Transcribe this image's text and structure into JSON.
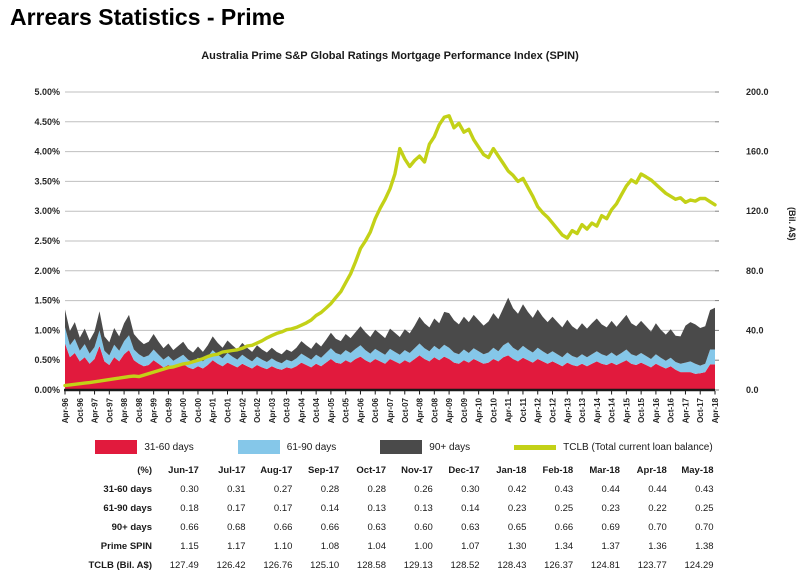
{
  "page_title": "Arrears Statistics - Prime",
  "chart": {
    "title": "Australia Prime S&P Global Ratings Mortgage Performance Index (SPIN)",
    "left_axis": {
      "ticks": [
        "0.00%",
        "0.50%",
        "1.00%",
        "1.50%",
        "2.00%",
        "2.50%",
        "3.00%",
        "3.50%",
        "4.00%",
        "4.50%",
        "5.00%"
      ],
      "min": 0,
      "max": 5
    },
    "right_axis": {
      "ticks": [
        "0.0",
        "40.0",
        "80.0",
        "120.0",
        "160.0",
        "200.0"
      ],
      "title": "(Bil. A$)",
      "min": 0,
      "max": 200
    }
  },
  "chart_data": {
    "type": "area",
    "stacked": true,
    "grid": true,
    "left_ylim": [
      0,
      5
    ],
    "right_ylim": [
      0,
      200
    ],
    "x_range": [
      "Apr-96",
      "Apr-18"
    ],
    "x_tick_labels": [
      "Apr-96",
      "Oct-96",
      "Apr-97",
      "Oct-97",
      "Apr-98",
      "Oct-98",
      "Apr-99",
      "Oct-99",
      "Apr-00",
      "Oct-00",
      "Apr-01",
      "Oct-01",
      "Apr-02",
      "Oct-02",
      "Apr-03",
      "Oct-03",
      "Apr-04",
      "Oct-04",
      "Apr-05",
      "Oct-05",
      "Apr-06",
      "Oct-06",
      "Apr-07",
      "Oct-07",
      "Apr-08",
      "Oct-08",
      "Apr-09",
      "Oct-09",
      "Apr-10",
      "Oct-10",
      "Apr-11",
      "Oct-11",
      "Apr-12",
      "Oct-12",
      "Apr-13",
      "Oct-13",
      "Apr-14",
      "Oct-14",
      "Apr-15",
      "Oct-15",
      "Apr-16",
      "Oct-16",
      "Apr-17",
      "Oct-17",
      "Apr-18"
    ],
    "series": [
      {
        "name": "31-60 days",
        "kind": "stacked-area",
        "axis": "left",
        "color": "#e11a3d",
        "values": [
          0.78,
          0.55,
          0.62,
          0.48,
          0.55,
          0.44,
          0.52,
          0.74,
          0.48,
          0.42,
          0.55,
          0.48,
          0.6,
          0.67,
          0.5,
          0.44,
          0.4,
          0.42,
          0.5,
          0.44,
          0.38,
          0.42,
          0.36,
          0.4,
          0.44,
          0.38,
          0.35,
          0.4,
          0.36,
          0.42,
          0.5,
          0.44,
          0.4,
          0.46,
          0.42,
          0.38,
          0.44,
          0.4,
          0.36,
          0.42,
          0.38,
          0.35,
          0.4,
          0.36,
          0.34,
          0.38,
          0.36,
          0.4,
          0.46,
          0.42,
          0.38,
          0.44,
          0.4,
          0.46,
          0.52,
          0.46,
          0.44,
          0.5,
          0.46,
          0.52,
          0.56,
          0.5,
          0.46,
          0.52,
          0.48,
          0.44,
          0.52,
          0.48,
          0.44,
          0.5,
          0.46,
          0.52,
          0.58,
          0.52,
          0.48,
          0.55,
          0.5,
          0.56,
          0.52,
          0.46,
          0.44,
          0.5,
          0.46,
          0.52,
          0.48,
          0.44,
          0.46,
          0.52,
          0.48,
          0.55,
          0.58,
          0.52,
          0.48,
          0.54,
          0.5,
          0.46,
          0.52,
          0.48,
          0.44,
          0.48,
          0.44,
          0.4,
          0.46,
          0.42,
          0.4,
          0.44,
          0.4,
          0.44,
          0.48,
          0.44,
          0.42,
          0.46,
          0.42,
          0.46,
          0.5,
          0.44,
          0.42,
          0.46,
          0.42,
          0.38,
          0.44,
          0.4,
          0.36,
          0.4,
          0.34,
          0.3,
          0.3,
          0.3,
          0.27,
          0.28,
          0.3,
          0.43,
          0.43
        ]
      },
      {
        "name": "61-90 days",
        "kind": "stacked-area",
        "axis": "left",
        "color": "#85c7e9",
        "values": [
          0.27,
          0.2,
          0.24,
          0.18,
          0.22,
          0.17,
          0.2,
          0.26,
          0.18,
          0.16,
          0.21,
          0.18,
          0.22,
          0.25,
          0.18,
          0.16,
          0.15,
          0.16,
          0.18,
          0.15,
          0.13,
          0.15,
          0.13,
          0.14,
          0.15,
          0.13,
          0.12,
          0.14,
          0.12,
          0.14,
          0.17,
          0.15,
          0.13,
          0.16,
          0.14,
          0.13,
          0.15,
          0.13,
          0.12,
          0.14,
          0.13,
          0.12,
          0.13,
          0.12,
          0.11,
          0.13,
          0.12,
          0.13,
          0.15,
          0.14,
          0.13,
          0.15,
          0.14,
          0.16,
          0.18,
          0.16,
          0.15,
          0.17,
          0.16,
          0.17,
          0.19,
          0.17,
          0.15,
          0.17,
          0.16,
          0.15,
          0.17,
          0.16,
          0.15,
          0.17,
          0.16,
          0.18,
          0.2,
          0.18,
          0.17,
          0.19,
          0.18,
          0.2,
          0.19,
          0.17,
          0.16,
          0.18,
          0.16,
          0.18,
          0.17,
          0.16,
          0.17,
          0.19,
          0.17,
          0.2,
          0.22,
          0.19,
          0.18,
          0.2,
          0.18,
          0.17,
          0.19,
          0.17,
          0.16,
          0.17,
          0.16,
          0.15,
          0.17,
          0.15,
          0.14,
          0.16,
          0.15,
          0.16,
          0.17,
          0.16,
          0.15,
          0.17,
          0.15,
          0.16,
          0.18,
          0.16,
          0.15,
          0.16,
          0.15,
          0.14,
          0.16,
          0.14,
          0.13,
          0.14,
          0.13,
          0.14,
          0.16,
          0.18,
          0.17,
          0.13,
          0.14,
          0.25,
          0.25
        ]
      },
      {
        "name": "90+ days",
        "kind": "stacked-area",
        "axis": "left",
        "color": "#4a4a4a",
        "values": [
          0.3,
          0.24,
          0.28,
          0.22,
          0.26,
          0.22,
          0.26,
          0.32,
          0.24,
          0.22,
          0.28,
          0.24,
          0.3,
          0.34,
          0.26,
          0.24,
          0.22,
          0.23,
          0.26,
          0.22,
          0.19,
          0.21,
          0.18,
          0.2,
          0.22,
          0.18,
          0.16,
          0.19,
          0.16,
          0.19,
          0.23,
          0.2,
          0.18,
          0.21,
          0.19,
          0.17,
          0.2,
          0.18,
          0.16,
          0.19,
          0.17,
          0.16,
          0.18,
          0.16,
          0.15,
          0.17,
          0.16,
          0.18,
          0.21,
          0.19,
          0.18,
          0.21,
          0.19,
          0.22,
          0.26,
          0.24,
          0.23,
          0.27,
          0.25,
          0.28,
          0.32,
          0.3,
          0.28,
          0.32,
          0.3,
          0.28,
          0.34,
          0.32,
          0.3,
          0.35,
          0.33,
          0.38,
          0.45,
          0.42,
          0.4,
          0.46,
          0.44,
          0.55,
          0.58,
          0.54,
          0.5,
          0.55,
          0.52,
          0.56,
          0.52,
          0.48,
          0.52,
          0.58,
          0.54,
          0.62,
          0.75,
          0.66,
          0.62,
          0.7,
          0.63,
          0.58,
          0.64,
          0.58,
          0.54,
          0.58,
          0.54,
          0.5,
          0.55,
          0.5,
          0.47,
          0.52,
          0.48,
          0.52,
          0.55,
          0.5,
          0.48,
          0.53,
          0.49,
          0.54,
          0.58,
          0.52,
          0.5,
          0.54,
          0.5,
          0.46,
          0.52,
          0.47,
          0.44,
          0.48,
          0.44,
          0.46,
          0.62,
          0.66,
          0.66,
          0.63,
          0.63,
          0.66,
          0.7
        ]
      },
      {
        "name": "TCLB (Total current loan balance)",
        "kind": "line",
        "axis": "right",
        "color": "#c3d117",
        "values": [
          3.0,
          3.4,
          3.8,
          4.2,
          4.6,
          5.0,
          5.5,
          6.0,
          6.5,
          7.0,
          7.5,
          8.0,
          8.5,
          9.0,
          9.3,
          9.0,
          10.0,
          11.0,
          12.0,
          13.0,
          14.0,
          15.0,
          15.5,
          16.5,
          17.5,
          18.0,
          19.0,
          20.0,
          21.0,
          22.5,
          23.5,
          24.0,
          25.5,
          26.0,
          26.5,
          27.0,
          28.0,
          29.5,
          30.0,
          31.5,
          33.0,
          35.0,
          36.5,
          38.0,
          39.0,
          40.5,
          41.0,
          42.0,
          43.5,
          45.0,
          47.0,
          50.0,
          52.0,
          55.0,
          58.0,
          62.0,
          66.0,
          72.0,
          78.0,
          86.0,
          95.0,
          100.0,
          106.0,
          115.0,
          122.0,
          128.0,
          135.0,
          145.0,
          162.0,
          155.0,
          150.0,
          154.0,
          157.0,
          153.0,
          165.0,
          170.0,
          178.0,
          183.0,
          184.0,
          176.0,
          179.0,
          173.0,
          175.0,
          168.0,
          163.0,
          158.0,
          156.0,
          162.0,
          157.0,
          152.0,
          147.0,
          144.0,
          140.0,
          142.0,
          136.0,
          130.0,
          123.0,
          119.0,
          116.0,
          112.0,
          108.0,
          104.0,
          102.0,
          107.0,
          105.0,
          111.0,
          108.0,
          112.0,
          110.0,
          117.0,
          115.0,
          121.0,
          125.0,
          131.0,
          137.0,
          141.0,
          139.0,
          145.0,
          143.0,
          141.0,
          138.0,
          135.0,
          132.0,
          130.0,
          128.0,
          129.0,
          126.0,
          127.5,
          126.8,
          128.6,
          128.5,
          126.4,
          124.3
        ]
      }
    ]
  },
  "legend": {
    "items": [
      {
        "label": "31-60 days",
        "color": "#e11a3d",
        "shape": "box"
      },
      {
        "label": "61-90 days",
        "color": "#85c7e9",
        "shape": "box"
      },
      {
        "label": "90+ days",
        "color": "#4a4a4a",
        "shape": "box"
      },
      {
        "label": "TCLB (Total current loan balance)",
        "color": "#c3d117",
        "shape": "line"
      }
    ]
  },
  "table": {
    "header": [
      "(%)",
      "Jun-17",
      "Jul-17",
      "Aug-17",
      "Sep-17",
      "Oct-17",
      "Nov-17",
      "Dec-17",
      "Jan-18",
      "Feb-18",
      "Mar-18",
      "Apr-18",
      "May-18"
    ],
    "rows": [
      {
        "label": "31-60 days",
        "values": [
          "0.30",
          "0.31",
          "0.27",
          "0.28",
          "0.28",
          "0.26",
          "0.30",
          "0.42",
          "0.43",
          "0.44",
          "0.44",
          "0.43"
        ]
      },
      {
        "label": "61-90 days",
        "values": [
          "0.18",
          "0.17",
          "0.17",
          "0.14",
          "0.13",
          "0.13",
          "0.14",
          "0.23",
          "0.25",
          "0.23",
          "0.22",
          "0.25"
        ]
      },
      {
        "label": "90+ days",
        "values": [
          "0.66",
          "0.68",
          "0.66",
          "0.66",
          "0.63",
          "0.60",
          "0.63",
          "0.65",
          "0.66",
          "0.69",
          "0.70",
          "0.70"
        ]
      },
      {
        "label": "Prime SPIN",
        "values": [
          "1.15",
          "1.17",
          "1.10",
          "1.08",
          "1.04",
          "1.00",
          "1.07",
          "1.30",
          "1.34",
          "1.37",
          "1.36",
          "1.38"
        ]
      },
      {
        "label": "TCLB (Bil. A$)",
        "values": [
          "127.49",
          "126.42",
          "126.76",
          "125.10",
          "128.58",
          "129.13",
          "128.52",
          "128.43",
          "126.37",
          "124.81",
          "123.77",
          "124.29"
        ]
      }
    ]
  },
  "colors": {
    "grid": "#bfbfbf",
    "axis_line": "#1a1a1a",
    "tick_text": "#262626"
  }
}
